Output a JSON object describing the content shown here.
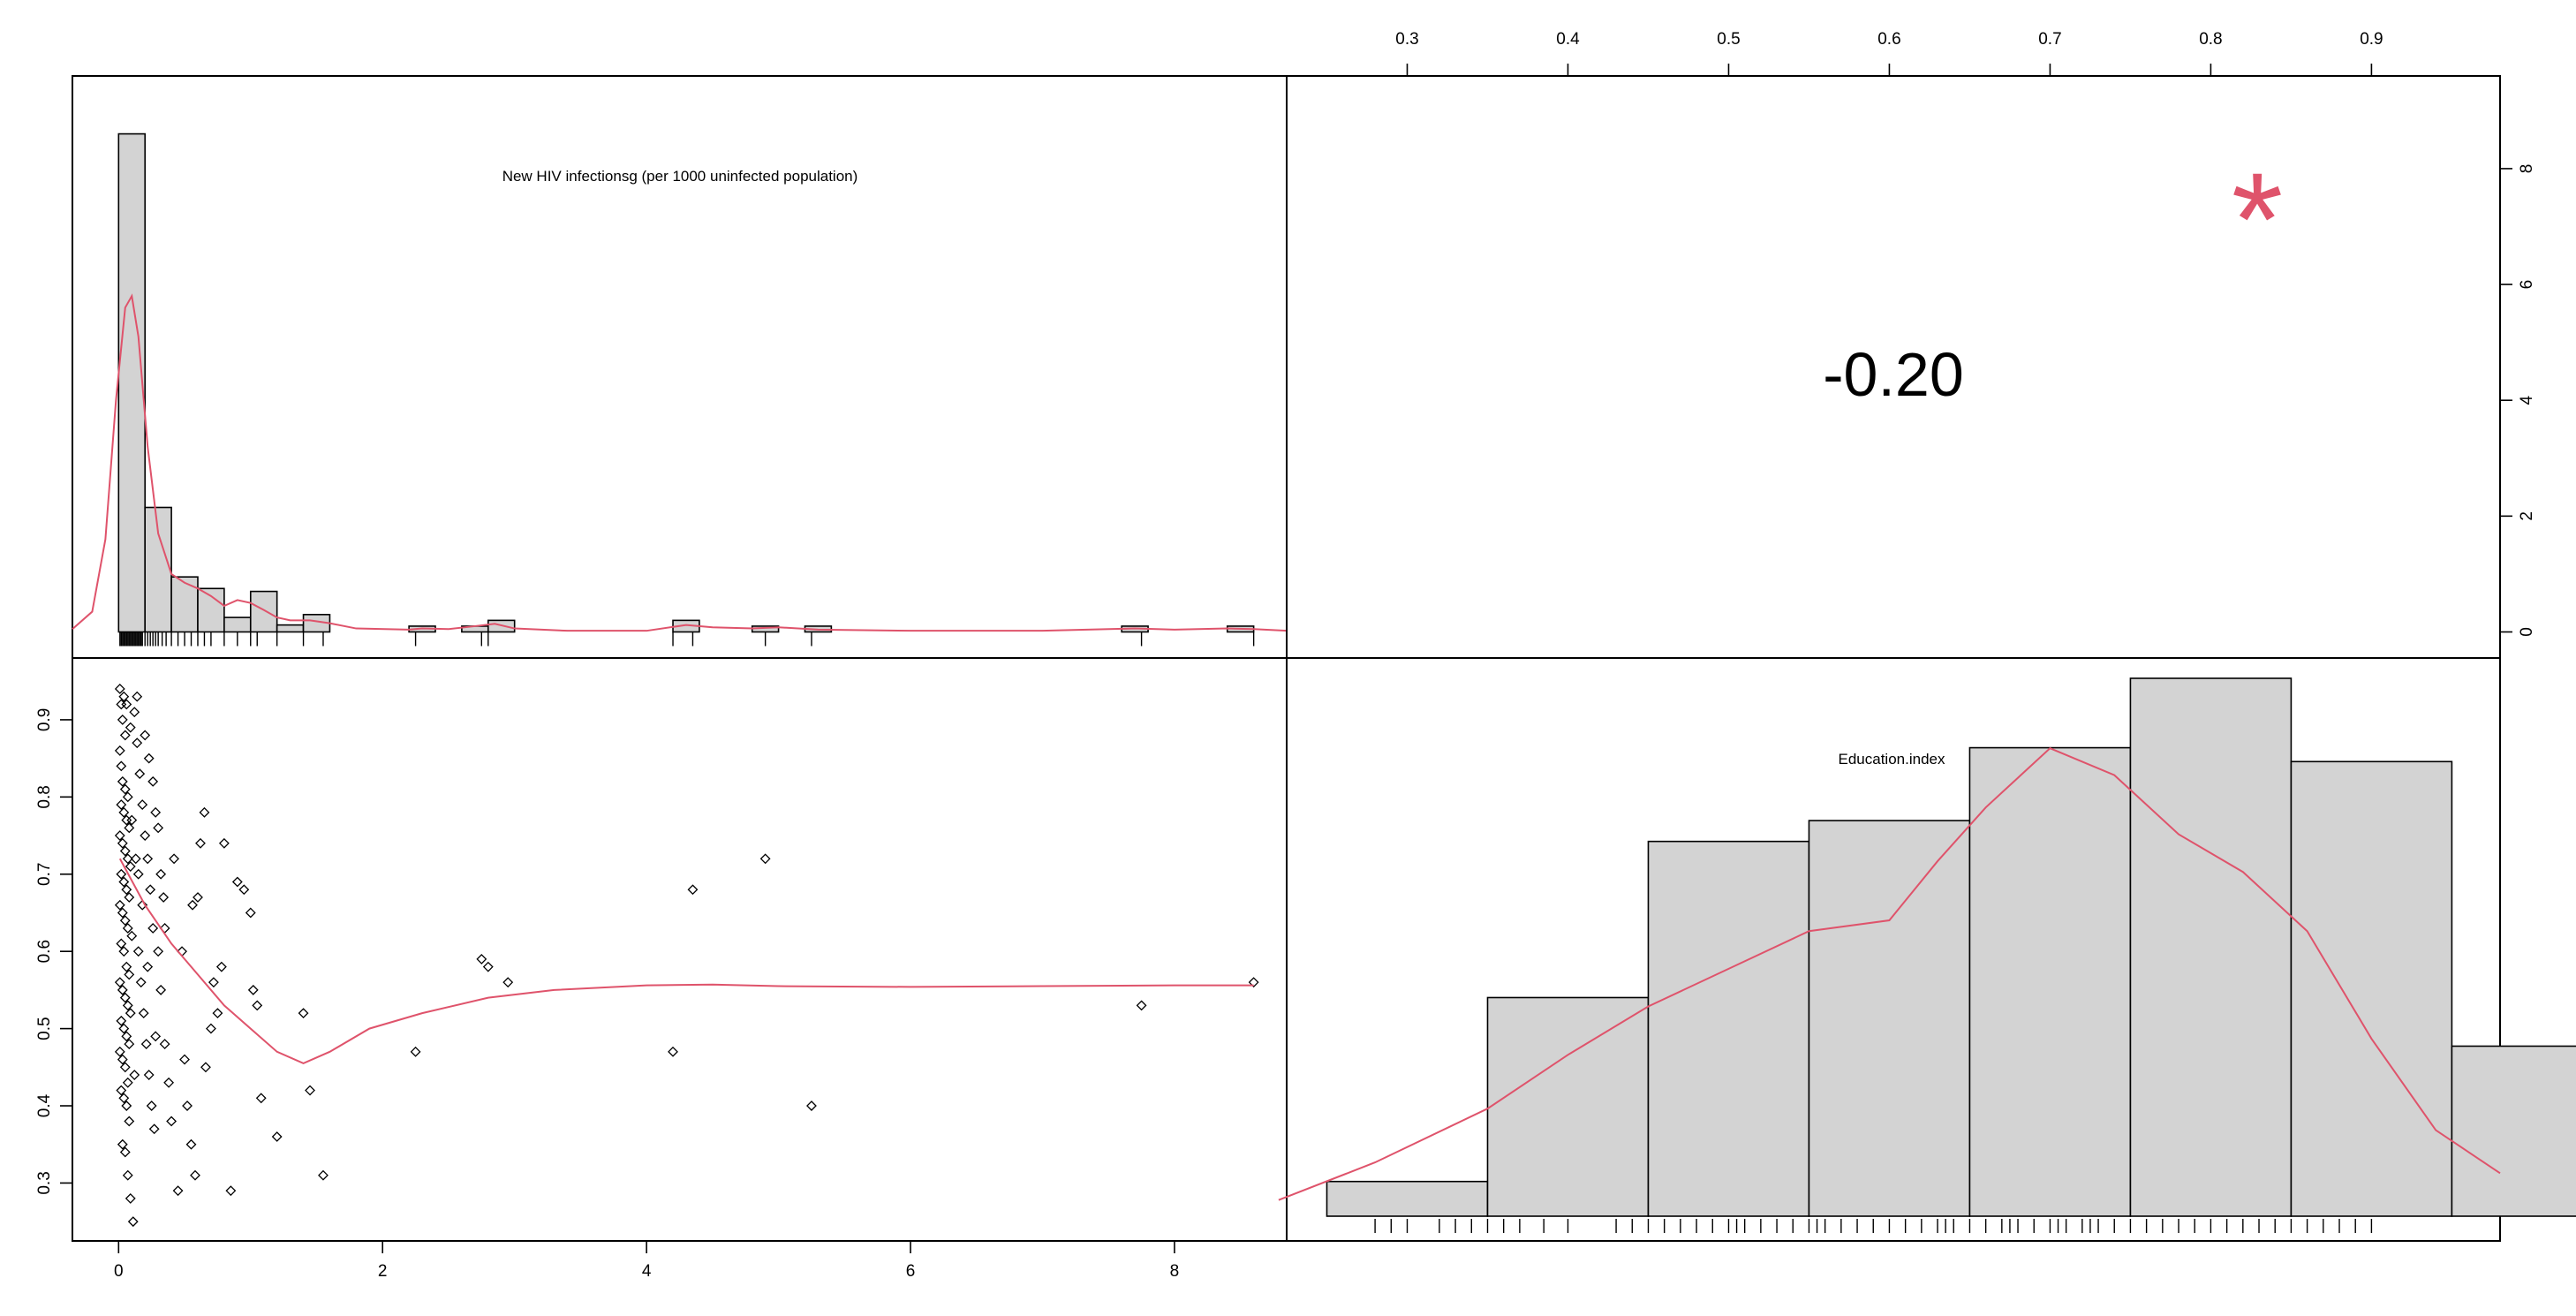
{
  "chart_data": {
    "type": "scatter",
    "kind": "correlation-matrix",
    "variables": [
      "New HIV infectionsg (per 1000 uninfected population)",
      "Education.index"
    ],
    "axes": {
      "hiv_ticks": [
        0,
        2,
        4,
        6,
        8
      ],
      "hiv_tick_labels": [
        "0",
        "2",
        "4",
        "6",
        "8"
      ],
      "hiv_range": [
        -0.35,
        8.85
      ],
      "edu_ticks": [
        0.3,
        0.4,
        0.5,
        0.6,
        0.7,
        0.8,
        0.9
      ],
      "edu_tick_labels": [
        "0.3",
        "0.4",
        "0.5",
        "0.6",
        "0.7",
        "0.8",
        "0.9"
      ],
      "edu_range": [
        0.225,
        0.98
      ],
      "density_ticks": [
        0,
        2,
        4,
        6,
        8
      ],
      "density_tick_labels": [
        "0",
        "2",
        "4",
        "6",
        "8"
      ],
      "density_range": [
        -0.45,
        9.6
      ]
    },
    "hiv_histogram": {
      "title": "New HIV infectionsg (per 1000 uninfected population)",
      "bin_width": 0.2,
      "bin_starts": [
        0.0,
        0.2,
        0.4,
        0.6,
        0.8,
        1.0,
        1.2,
        1.4,
        2.2,
        2.6,
        2.8,
        4.2,
        4.8,
        5.2,
        7.6,
        8.4
      ],
      "heights": [
        8.6,
        2.15,
        0.95,
        0.75,
        0.25,
        0.7,
        0.12,
        0.3,
        0.1,
        0.1,
        0.2,
        0.2,
        0.1,
        0.1,
        0.1,
        0.1
      ],
      "rug": [
        0.01,
        0.02,
        0.03,
        0.04,
        0.05,
        0.06,
        0.07,
        0.08,
        0.09,
        0.1,
        0.11,
        0.12,
        0.13,
        0.14,
        0.15,
        0.16,
        0.17,
        0.18,
        0.2,
        0.22,
        0.24,
        0.26,
        0.28,
        0.3,
        0.33,
        0.36,
        0.4,
        0.45,
        0.5,
        0.55,
        0.6,
        0.65,
        0.7,
        0.8,
        0.9,
        1.0,
        1.05,
        1.2,
        1.4,
        1.55,
        2.25,
        2.75,
        2.8,
        4.2,
        4.35,
        4.9,
        5.25,
        7.75,
        8.6
      ],
      "density": [
        [
          -0.35,
          0.05
        ],
        [
          -0.2,
          0.35
        ],
        [
          -0.1,
          1.6
        ],
        [
          -0.02,
          4.0
        ],
        [
          0.05,
          5.6
        ],
        [
          0.1,
          5.8
        ],
        [
          0.15,
          5.1
        ],
        [
          0.22,
          3.2
        ],
        [
          0.3,
          1.7
        ],
        [
          0.4,
          1.0
        ],
        [
          0.5,
          0.85
        ],
        [
          0.6,
          0.75
        ],
        [
          0.7,
          0.62
        ],
        [
          0.8,
          0.45
        ],
        [
          0.9,
          0.55
        ],
        [
          1.0,
          0.5
        ],
        [
          1.1,
          0.38
        ],
        [
          1.2,
          0.25
        ],
        [
          1.3,
          0.2
        ],
        [
          1.45,
          0.2
        ],
        [
          1.6,
          0.15
        ],
        [
          1.8,
          0.06
        ],
        [
          2.2,
          0.04
        ],
        [
          2.3,
          0.06
        ],
        [
          2.5,
          0.05
        ],
        [
          2.7,
          0.1
        ],
        [
          2.85,
          0.14
        ],
        [
          3.0,
          0.06
        ],
        [
          3.4,
          0.02
        ],
        [
          4.0,
          0.02
        ],
        [
          4.3,
          0.12
        ],
        [
          4.5,
          0.08
        ],
        [
          4.8,
          0.06
        ],
        [
          5.0,
          0.08
        ],
        [
          5.3,
          0.04
        ],
        [
          6.0,
          0.02
        ],
        [
          7.0,
          0.02
        ],
        [
          7.7,
          0.06
        ],
        [
          8.0,
          0.04
        ],
        [
          8.4,
          0.06
        ],
        [
          8.6,
          0.05
        ],
        [
          8.85,
          0.02
        ]
      ]
    },
    "correlation": {
      "value_label": "-0.20",
      "signif": "*"
    },
    "scatter": {
      "x_label": "New HIV infectionsg (per 1000 uninfected population)",
      "y_label": "Education.index",
      "points": [
        [
          0.01,
          0.94
        ],
        [
          0.02,
          0.92
        ],
        [
          0.04,
          0.93
        ],
        [
          0.06,
          0.92
        ],
        [
          0.03,
          0.9
        ],
        [
          0.05,
          0.88
        ],
        [
          0.01,
          0.86
        ],
        [
          0.02,
          0.84
        ],
        [
          0.03,
          0.82
        ],
        [
          0.05,
          0.81
        ],
        [
          0.07,
          0.8
        ],
        [
          0.02,
          0.79
        ],
        [
          0.04,
          0.78
        ],
        [
          0.06,
          0.77
        ],
        [
          0.08,
          0.76
        ],
        [
          0.01,
          0.75
        ],
        [
          0.03,
          0.74
        ],
        [
          0.05,
          0.73
        ],
        [
          0.07,
          0.72
        ],
        [
          0.09,
          0.71
        ],
        [
          0.02,
          0.7
        ],
        [
          0.04,
          0.69
        ],
        [
          0.06,
          0.68
        ],
        [
          0.08,
          0.67
        ],
        [
          0.01,
          0.66
        ],
        [
          0.03,
          0.65
        ],
        [
          0.05,
          0.64
        ],
        [
          0.07,
          0.63
        ],
        [
          0.1,
          0.62
        ],
        [
          0.02,
          0.61
        ],
        [
          0.04,
          0.6
        ],
        [
          0.06,
          0.58
        ],
        [
          0.08,
          0.57
        ],
        [
          0.01,
          0.56
        ],
        [
          0.03,
          0.55
        ],
        [
          0.05,
          0.54
        ],
        [
          0.07,
          0.53
        ],
        [
          0.09,
          0.52
        ],
        [
          0.02,
          0.51
        ],
        [
          0.04,
          0.5
        ],
        [
          0.06,
          0.49
        ],
        [
          0.08,
          0.48
        ],
        [
          0.01,
          0.47
        ],
        [
          0.03,
          0.46
        ],
        [
          0.05,
          0.45
        ],
        [
          0.07,
          0.43
        ],
        [
          0.02,
          0.42
        ],
        [
          0.04,
          0.41
        ],
        [
          0.06,
          0.4
        ],
        [
          0.08,
          0.38
        ],
        [
          0.03,
          0.35
        ],
        [
          0.05,
          0.34
        ],
        [
          0.07,
          0.31
        ],
        [
          0.09,
          0.28
        ],
        [
          0.11,
          0.25
        ],
        [
          0.12,
          0.91
        ],
        [
          0.14,
          0.87
        ],
        [
          0.16,
          0.83
        ],
        [
          0.18,
          0.79
        ],
        [
          0.2,
          0.75
        ],
        [
          0.22,
          0.72
        ],
        [
          0.24,
          0.68
        ],
        [
          0.26,
          0.63
        ],
        [
          0.15,
          0.6
        ],
        [
          0.17,
          0.56
        ],
        [
          0.19,
          0.52
        ],
        [
          0.21,
          0.48
        ],
        [
          0.23,
          0.44
        ],
        [
          0.25,
          0.4
        ],
        [
          0.27,
          0.37
        ],
        [
          0.13,
          0.72
        ],
        [
          0.15,
          0.7
        ],
        [
          0.2,
          0.88
        ],
        [
          0.23,
          0.85
        ],
        [
          0.26,
          0.82
        ],
        [
          0.28,
          0.78
        ],
        [
          0.3,
          0.76
        ],
        [
          0.32,
          0.7
        ],
        [
          0.34,
          0.67
        ],
        [
          0.3,
          0.6
        ],
        [
          0.32,
          0.55
        ],
        [
          0.35,
          0.48
        ],
        [
          0.38,
          0.43
        ],
        [
          0.4,
          0.38
        ],
        [
          0.45,
          0.29
        ],
        [
          0.5,
          0.46
        ],
        [
          0.52,
          0.4
        ],
        [
          0.55,
          0.35
        ],
        [
          0.58,
          0.31
        ],
        [
          0.6,
          0.67
        ],
        [
          0.62,
          0.74
        ],
        [
          0.65,
          0.78
        ],
        [
          0.7,
          0.5
        ],
        [
          0.72,
          0.56
        ],
        [
          0.75,
          0.52
        ],
        [
          0.8,
          0.74
        ],
        [
          0.85,
          0.29
        ],
        [
          0.9,
          0.69
        ],
        [
          0.95,
          0.68
        ],
        [
          1.0,
          0.65
        ],
        [
          1.02,
          0.55
        ],
        [
          1.05,
          0.53
        ],
        [
          1.08,
          0.41
        ],
        [
          1.2,
          0.36
        ],
        [
          1.4,
          0.52
        ],
        [
          1.45,
          0.42
        ],
        [
          1.55,
          0.31
        ],
        [
          2.25,
          0.47
        ],
        [
          2.75,
          0.59
        ],
        [
          2.8,
          0.58
        ],
        [
          2.95,
          0.56
        ],
        [
          4.2,
          0.47
        ],
        [
          4.35,
          0.68
        ],
        [
          4.9,
          0.72
        ],
        [
          5.25,
          0.4
        ],
        [
          7.75,
          0.53
        ],
        [
          8.6,
          0.56
        ],
        [
          0.18,
          0.66
        ],
        [
          0.22,
          0.58
        ],
        [
          0.28,
          0.49
        ],
        [
          0.12,
          0.44
        ],
        [
          0.1,
          0.77
        ],
        [
          0.35,
          0.63
        ],
        [
          0.42,
          0.72
        ],
        [
          0.48,
          0.6
        ],
        [
          0.56,
          0.66
        ],
        [
          0.66,
          0.45
        ],
        [
          0.78,
          0.58
        ],
        [
          0.14,
          0.93
        ],
        [
          0.09,
          0.89
        ]
      ],
      "smooth": [
        [
          0.01,
          0.72
        ],
        [
          0.2,
          0.66
        ],
        [
          0.4,
          0.61
        ],
        [
          0.6,
          0.57
        ],
        [
          0.8,
          0.53
        ],
        [
          1.0,
          0.5
        ],
        [
          1.2,
          0.47
        ],
        [
          1.4,
          0.455
        ],
        [
          1.6,
          0.47
        ],
        [
          1.9,
          0.5
        ],
        [
          2.3,
          0.52
        ],
        [
          2.8,
          0.54
        ],
        [
          3.3,
          0.55
        ],
        [
          4.0,
          0.556
        ],
        [
          4.5,
          0.557
        ],
        [
          5.0,
          0.555
        ],
        [
          6.0,
          0.554
        ],
        [
          7.0,
          0.555
        ],
        [
          8.0,
          0.556
        ],
        [
          8.6,
          0.556
        ]
      ]
    },
    "edu_histogram": {
      "title": "Education.index",
      "bin_edges": [
        0.25,
        0.35,
        0.45,
        0.55,
        0.65,
        0.75,
        0.85,
        0.95,
        1.05
      ],
      "counts": [
        1,
        6.3,
        10.8,
        11.4,
        13.5,
        15.5,
        13.1,
        4.9
      ],
      "rug": [
        0.28,
        0.29,
        0.3,
        0.32,
        0.33,
        0.34,
        0.35,
        0.36,
        0.37,
        0.385,
        0.4,
        0.43,
        0.44,
        0.45,
        0.46,
        0.47,
        0.48,
        0.49,
        0.5,
        0.505,
        0.51,
        0.52,
        0.53,
        0.54,
        0.55,
        0.555,
        0.56,
        0.57,
        0.58,
        0.59,
        0.6,
        0.61,
        0.62,
        0.63,
        0.635,
        0.64,
        0.65,
        0.66,
        0.67,
        0.675,
        0.68,
        0.69,
        0.7,
        0.705,
        0.71,
        0.72,
        0.725,
        0.73,
        0.74,
        0.75,
        0.76,
        0.77,
        0.78,
        0.79,
        0.8,
        0.81,
        0.82,
        0.83,
        0.84,
        0.85,
        0.86,
        0.87,
        0.88,
        0.89,
        0.9
      ],
      "density_x": [
        0.22,
        0.28,
        0.35,
        0.4,
        0.45,
        0.5,
        0.55,
        0.6,
        0.63,
        0.66,
        0.7,
        0.74,
        0.78,
        0.82,
        0.86,
        0.9,
        0.94,
        0.98
      ],
      "density_y": [
        0.03,
        0.1,
        0.2,
        0.3,
        0.39,
        0.46,
        0.53,
        0.55,
        0.66,
        0.76,
        0.87,
        0.82,
        0.71,
        0.64,
        0.53,
        0.33,
        0.16,
        0.08
      ]
    }
  }
}
